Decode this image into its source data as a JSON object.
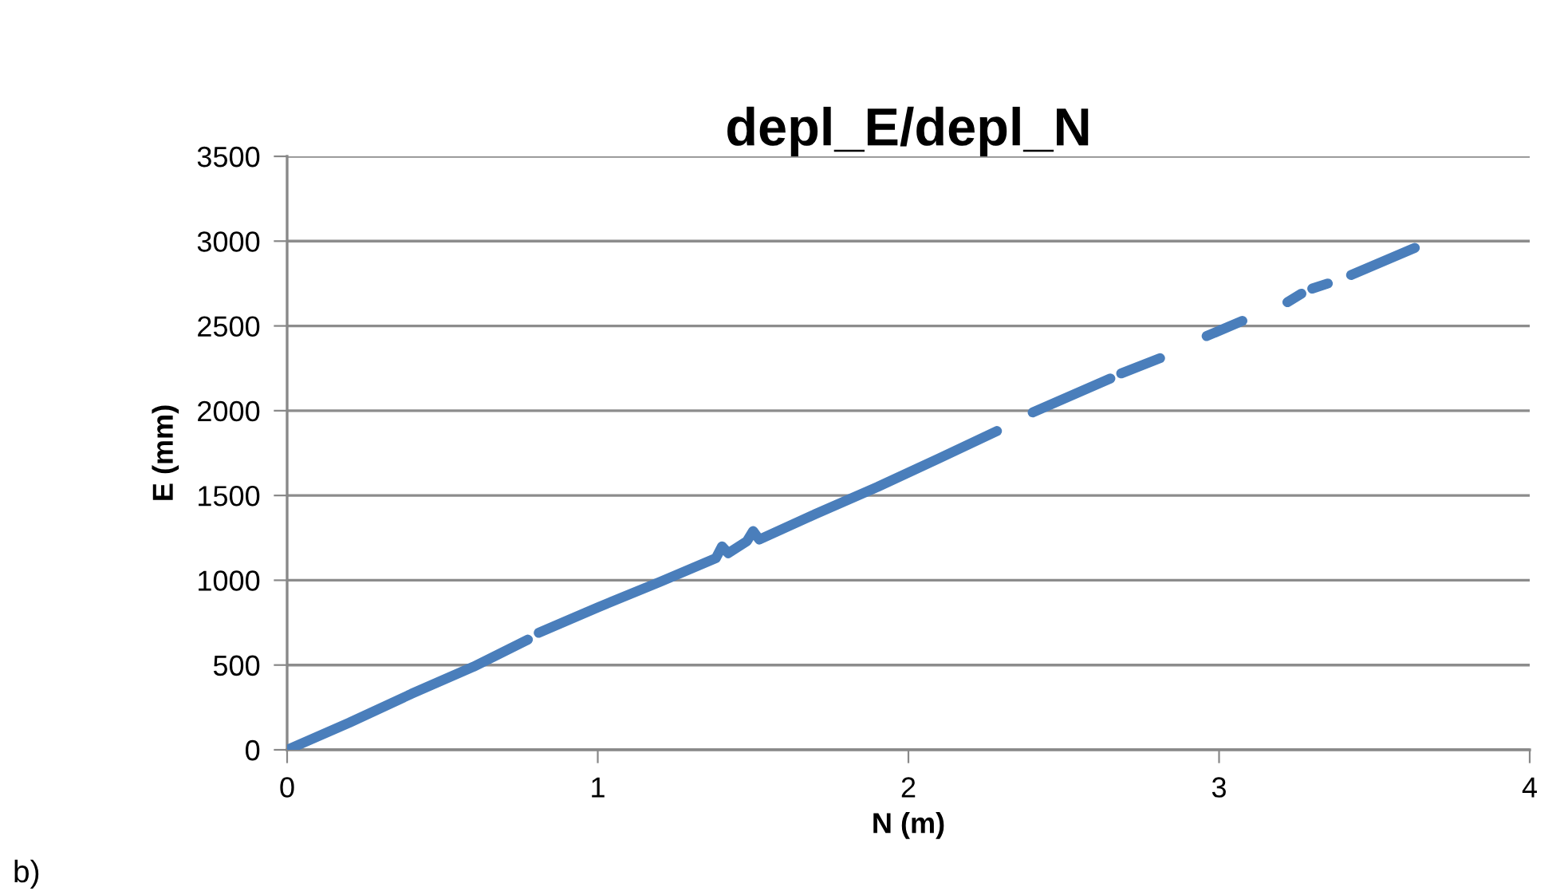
{
  "chart_data": {
    "type": "line",
    "title": "depl_E/depl_N",
    "xlabel": "N (m)",
    "ylabel": "E (mm)",
    "annotations": [
      "b)"
    ],
    "x": [
      0,
      0.2,
      0.4,
      0.6,
      0.775,
      null,
      0.81,
      1.0,
      1.2,
      1.38,
      1.4,
      1.42,
      1.48,
      1.5,
      1.52,
      1.7,
      1.9,
      2.1,
      2.285,
      null,
      2.4,
      2.65,
      null,
      2.685,
      2.81,
      null,
      2.96,
      3.075,
      null,
      3.22,
      3.265,
      null,
      3.3,
      3.35,
      null,
      3.425,
      3.63
    ],
    "series": [
      {
        "color": "#4a7ebb",
        "values": [
          0,
          160,
          330,
          490,
          650,
          null,
          690,
          840,
          990,
          1130,
          1200,
          1160,
          1230,
          1290,
          1240,
          1390,
          1550,
          1720,
          1880,
          null,
          1990,
          2190,
          null,
          2220,
          2310,
          null,
          2440,
          2530,
          null,
          2640,
          2690,
          null,
          2720,
          2750,
          null,
          2800,
          2960
        ]
      }
    ],
    "xlim": [
      0,
      4
    ],
    "xticks": [
      0,
      1,
      2,
      3,
      4
    ],
    "ylim": [
      0,
      3500
    ],
    "yticks": [
      0,
      500,
      1000,
      1500,
      2000,
      2500,
      3000,
      3500
    ],
    "grid": "y",
    "legend": false,
    "marker": "none",
    "line_style": "solid"
  }
}
